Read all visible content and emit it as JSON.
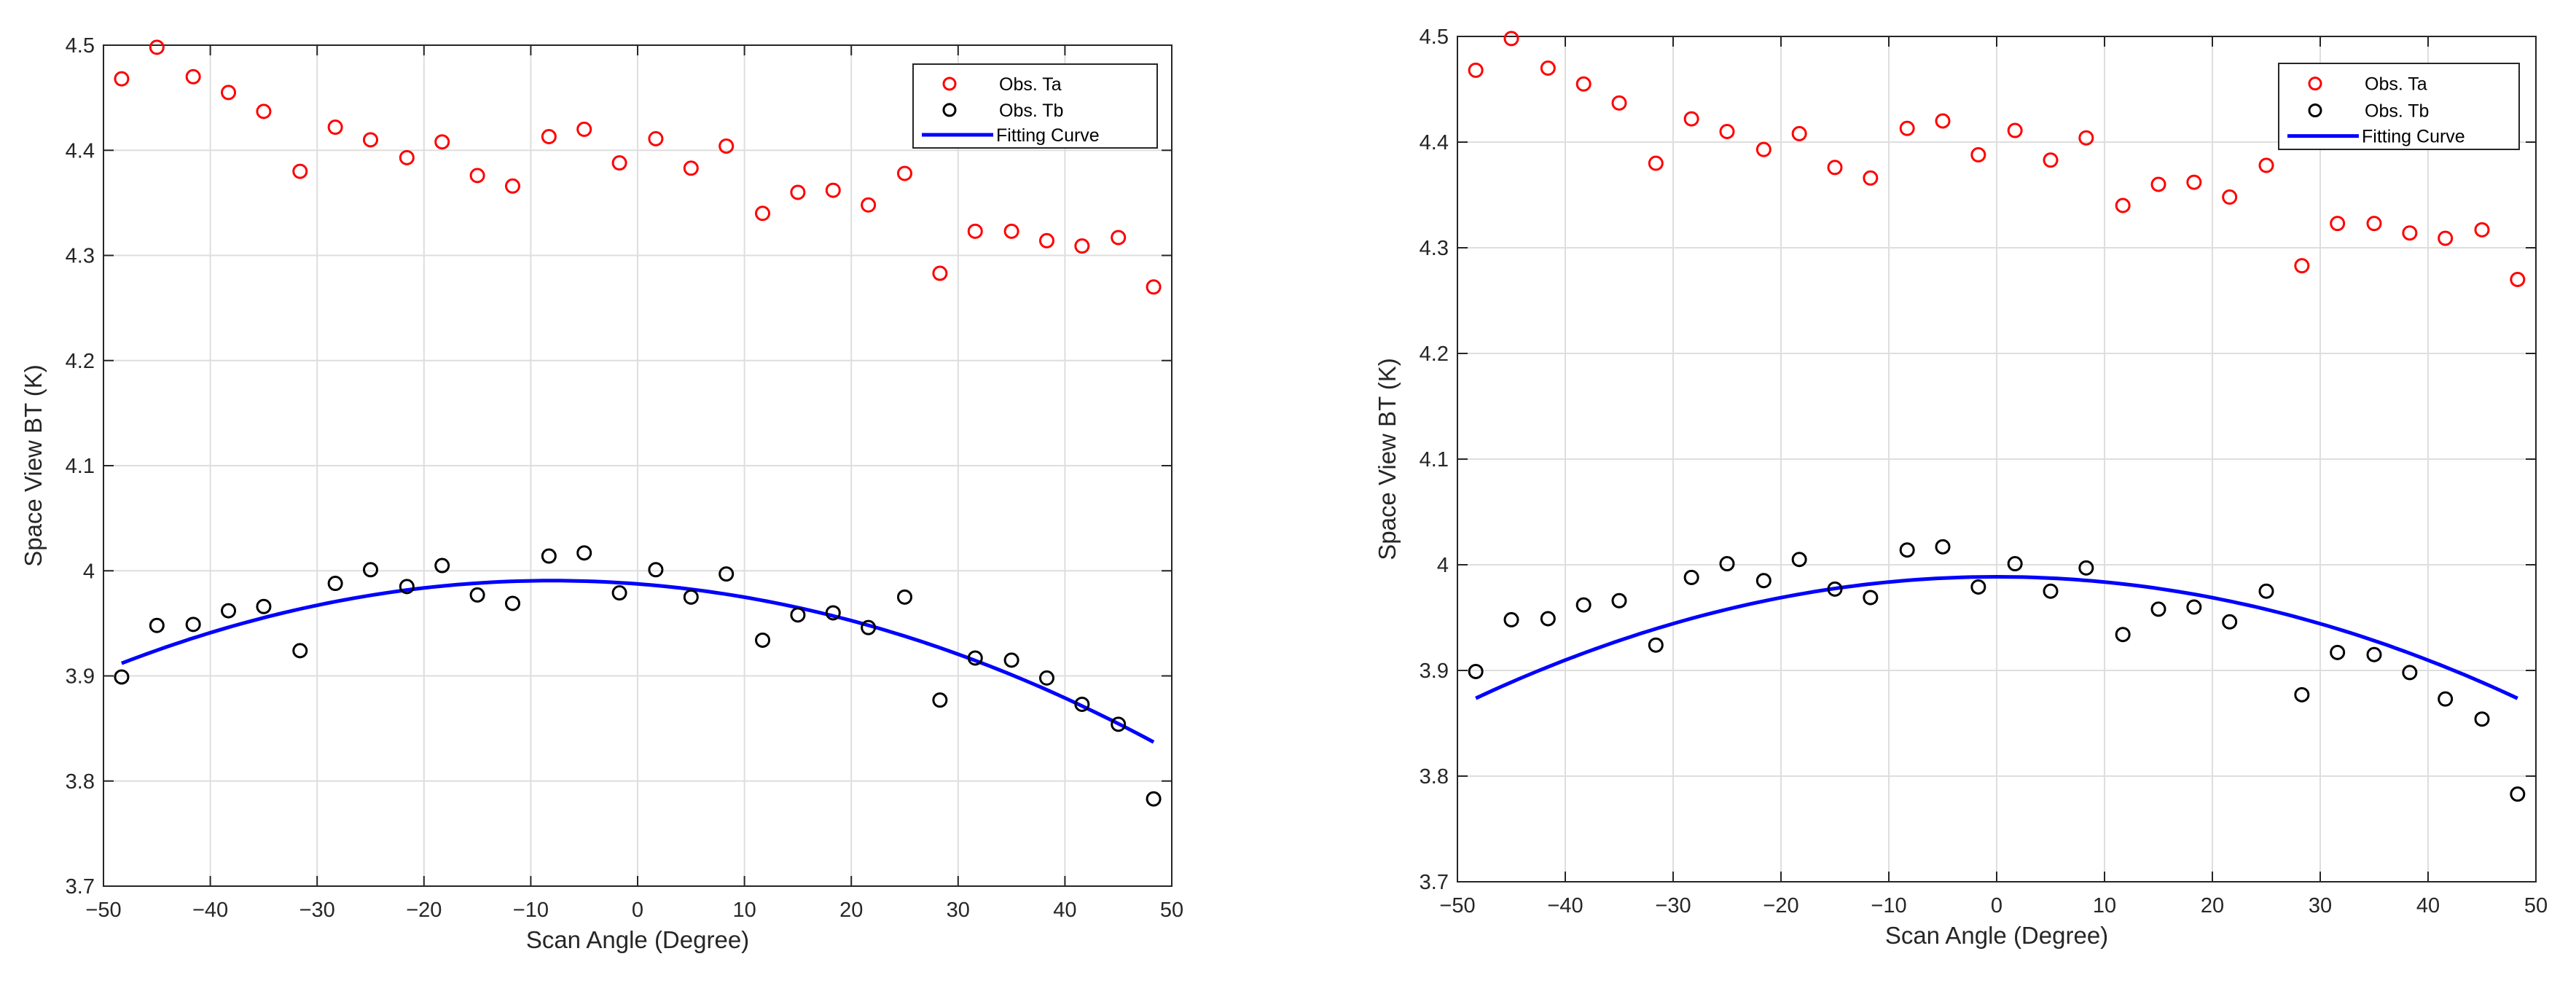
{
  "chart_data": [
    {
      "type": "scatter",
      "title": "",
      "xlabel": "Scan Angle (Degree)",
      "ylabel": "Space View BT (K)",
      "xlim": [
        -50,
        50
      ],
      "ylim": [
        3.7,
        4.5
      ],
      "xticks": [
        -50,
        -40,
        -30,
        -20,
        -10,
        0,
        10,
        20,
        30,
        40,
        50
      ],
      "yticks": [
        3.7,
        3.8,
        3.9,
        4,
        4.1,
        4.2,
        4.3,
        4.4,
        4.5
      ],
      "xtick_labels": [
        "−50",
        "−40",
        "−30",
        "−20",
        "−10",
        "0",
        "10",
        "20",
        "30",
        "40",
        "50"
      ],
      "ytick_labels": [
        "3.7",
        "3.8",
        "3.9",
        "4",
        "4.1",
        "4.2",
        "4.3",
        "4.4",
        "4.5"
      ],
      "grid": true,
      "legend_position": "top-right",
      "legend": [
        "Obs. Ta",
        "Obs. Tb",
        "Fitting Curve"
      ],
      "colors": {
        "ta": "#ff0000",
        "tb": "#000000",
        "fit": "#0000ff"
      },
      "x": [
        -48.3,
        -45,
        -41.6,
        -38.3,
        -35,
        -31.6,
        -28.3,
        -25,
        -21.6,
        -18.3,
        -15,
        -11.7,
        -8.3,
        -5,
        -1.7,
        1.7,
        5,
        8.3,
        11.7,
        15,
        18.3,
        21.6,
        25,
        28.3,
        31.6,
        35,
        38.3,
        41.6,
        45,
        48.3
      ],
      "series": [
        {
          "name": "Obs. Ta",
          "style": "markers",
          "values": [
            4.468,
            4.498,
            4.47,
            4.455,
            4.437,
            4.38,
            4.422,
            4.41,
            4.393,
            4.408,
            4.376,
            4.366,
            4.413,
            4.42,
            4.388,
            4.411,
            4.383,
            4.404,
            4.34,
            4.36,
            4.362,
            4.348,
            4.378,
            4.283,
            4.323,
            4.323,
            4.314,
            4.309,
            4.317,
            4.27
          ]
        },
        {
          "name": "Obs. Tb",
          "style": "markers",
          "values": [
            3.899,
            3.948,
            3.949,
            3.962,
            3.966,
            3.924,
            3.988,
            4.001,
            3.985,
            4.005,
            3.977,
            3.969,
            4.014,
            4.017,
            3.979,
            4.001,
            3.975,
            3.997,
            3.934,
            3.958,
            3.96,
            3.946,
            3.975,
            3.877,
            3.917,
            3.915,
            3.898,
            3.873,
            3.854,
            3.783
          ]
        },
        {
          "name": "Fitting Curve",
          "style": "line",
          "x": [
            -48.3,
            -40,
            -30,
            -20,
            -10,
            0,
            10,
            20,
            30,
            40,
            48.3
          ],
          "values": [
            3.911,
            3.94,
            3.967,
            3.985,
            3.993,
            3.99,
            3.976,
            3.951,
            3.916,
            3.871,
            3.846
          ]
        }
      ]
    },
    {
      "type": "scatter",
      "title": "",
      "xlabel": "Scan Angle (Degree)",
      "ylabel": "Space View BT (K)",
      "xlim": [
        -50,
        50
      ],
      "ylim": [
        3.7,
        4.5
      ],
      "xticks": [
        -50,
        -40,
        -30,
        -20,
        -10,
        0,
        10,
        20,
        30,
        40,
        50
      ],
      "yticks": [
        3.7,
        3.8,
        3.9,
        4,
        4.1,
        4.2,
        4.3,
        4.4,
        4.5
      ],
      "xtick_labels": [
        "−50",
        "−40",
        "−30",
        "−20",
        "−10",
        "0",
        "10",
        "20",
        "30",
        "40",
        "50"
      ],
      "ytick_labels": [
        "3.7",
        "3.8",
        "3.9",
        "4",
        "4.1",
        "4.2",
        "4.3",
        "4.4",
        "4.5"
      ],
      "grid": true,
      "legend_position": "top-right",
      "legend": [
        "Obs. Ta",
        "Obs. Tb",
        "Fitting Curve"
      ],
      "colors": {
        "ta": "#ff0000",
        "tb": "#000000",
        "fit": "#0000ff"
      },
      "x": [
        -48.3,
        -45,
        -41.6,
        -38.3,
        -35,
        -31.6,
        -28.3,
        -25,
        -21.6,
        -18.3,
        -15,
        -11.7,
        -8.3,
        -5,
        -1.7,
        1.7,
        5,
        8.3,
        11.7,
        15,
        18.3,
        21.6,
        25,
        28.3,
        31.6,
        35,
        38.3,
        41.6,
        45,
        48.3
      ],
      "series": [
        {
          "name": "Obs. Ta",
          "style": "markers",
          "values": [
            4.468,
            4.498,
            4.47,
            4.455,
            4.437,
            4.38,
            4.422,
            4.41,
            4.393,
            4.408,
            4.376,
            4.366,
            4.413,
            4.42,
            4.388,
            4.411,
            4.383,
            4.404,
            4.34,
            4.36,
            4.362,
            4.348,
            4.378,
            4.283,
            4.323,
            4.323,
            4.314,
            4.309,
            4.317,
            4.27
          ]
        },
        {
          "name": "Obs. Tb",
          "style": "markers",
          "values": [
            3.899,
            3.948,
            3.949,
            3.962,
            3.966,
            3.924,
            3.988,
            4.001,
            3.985,
            4.005,
            3.977,
            3.969,
            4.014,
            4.017,
            3.979,
            4.001,
            3.975,
            3.997,
            3.934,
            3.958,
            3.96,
            3.946,
            3.975,
            3.877,
            3.917,
            3.915,
            3.898,
            3.873,
            3.854,
            3.783
          ]
        },
        {
          "name": "Fitting Curve",
          "style": "line",
          "x": [
            -48.3,
            -40,
            -30,
            -20,
            -10,
            0,
            10,
            20,
            30,
            40,
            48.3
          ],
          "values": [
            3.878,
            3.907,
            3.939,
            3.967,
            3.986,
            3.994,
            3.987,
            3.968,
            3.939,
            3.906,
            3.878
          ]
        }
      ]
    }
  ]
}
